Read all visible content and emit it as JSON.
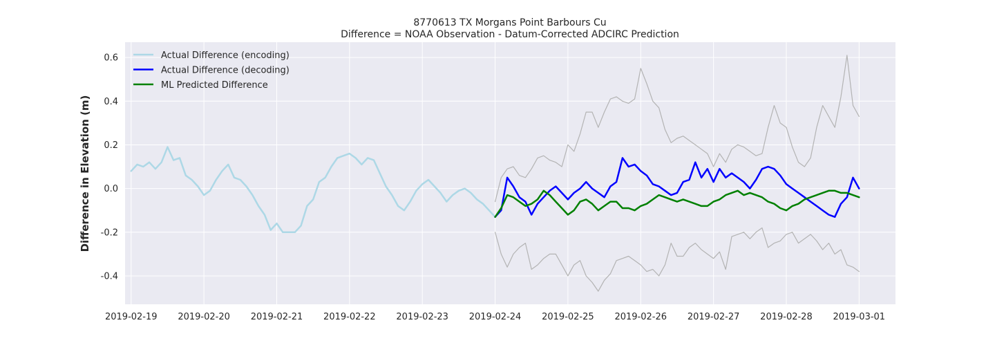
{
  "chart_data": {
    "type": "line",
    "title": "8770613 TX Morgans Point Barbours Cu",
    "subtitle": "Difference = NOAA Observation - Datum-Corrected ADCIRC Prediction",
    "xlabel": "",
    "ylabel": "Difference in Elevation (m)",
    "xlim": [
      "2019-02-18T22:00",
      "2019-03-01T12:00"
    ],
    "ylim": [
      -0.53,
      0.67
    ],
    "x_ticks": [
      "2019-02-19",
      "2019-02-20",
      "2019-02-21",
      "2019-02-22",
      "2019-02-23",
      "2019-02-24",
      "2019-02-25",
      "2019-02-26",
      "2019-02-27",
      "2019-02-28",
      "2019-03-01"
    ],
    "y_ticks": [
      -0.4,
      -0.2,
      0.0,
      0.2,
      0.4,
      0.6
    ],
    "grid": true,
    "legend_position": "top-left",
    "colors": {
      "background": "#eaeaf2",
      "grid": "#ffffff",
      "encoding": "#add8e6",
      "decoding": "#0000ff",
      "ml": "#008000",
      "band": "#b3b3b3"
    },
    "series": [
      {
        "name": "Actual Difference (encoding)",
        "x": [
          "2019-02-19T00:00",
          "2019-02-19T02:00",
          "2019-02-19T04:00",
          "2019-02-19T06:00",
          "2019-02-19T08:00",
          "2019-02-19T10:00",
          "2019-02-19T12:00",
          "2019-02-19T14:00",
          "2019-02-19T16:00",
          "2019-02-19T18:00",
          "2019-02-19T20:00",
          "2019-02-19T22:00",
          "2019-02-20T00:00",
          "2019-02-20T02:00",
          "2019-02-20T04:00",
          "2019-02-20T06:00",
          "2019-02-20T08:00",
          "2019-02-20T10:00",
          "2019-02-20T12:00",
          "2019-02-20T14:00",
          "2019-02-20T16:00",
          "2019-02-20T18:00",
          "2019-02-20T20:00",
          "2019-02-20T22:00",
          "2019-02-21T00:00",
          "2019-02-21T02:00",
          "2019-02-21T04:00",
          "2019-02-21T06:00",
          "2019-02-21T08:00",
          "2019-02-21T10:00",
          "2019-02-21T12:00",
          "2019-02-21T14:00",
          "2019-02-21T16:00",
          "2019-02-21T18:00",
          "2019-02-21T20:00",
          "2019-02-21T22:00",
          "2019-02-22T00:00",
          "2019-02-22T02:00",
          "2019-02-22T04:00",
          "2019-02-22T06:00",
          "2019-02-22T08:00",
          "2019-02-22T10:00",
          "2019-02-22T12:00",
          "2019-02-22T14:00",
          "2019-02-22T16:00",
          "2019-02-22T18:00",
          "2019-02-22T20:00",
          "2019-02-22T22:00",
          "2019-02-23T00:00",
          "2019-02-23T02:00",
          "2019-02-23T04:00",
          "2019-02-23T06:00",
          "2019-02-23T08:00",
          "2019-02-23T10:00",
          "2019-02-23T12:00",
          "2019-02-23T14:00",
          "2019-02-23T16:00",
          "2019-02-23T18:00",
          "2019-02-23T20:00",
          "2019-02-23T22:00",
          "2019-02-24T00:00"
        ],
        "values": [
          0.08,
          0.11,
          0.1,
          0.12,
          0.09,
          0.12,
          0.19,
          0.13,
          0.14,
          0.06,
          0.04,
          0.01,
          -0.03,
          -0.01,
          0.04,
          0.08,
          0.11,
          0.05,
          0.04,
          0.01,
          -0.03,
          -0.08,
          -0.12,
          -0.19,
          -0.16,
          -0.2,
          -0.2,
          -0.2,
          -0.17,
          -0.08,
          -0.05,
          0.03,
          0.05,
          0.1,
          0.14,
          0.15,
          0.16,
          0.14,
          0.11,
          0.14,
          0.13,
          0.07,
          0.01,
          -0.03,
          -0.08,
          -0.1,
          -0.06,
          -0.01,
          0.02,
          0.04,
          0.01,
          -0.02,
          -0.06,
          -0.03,
          -0.01,
          0.0,
          -0.02,
          -0.05,
          -0.07,
          -0.1,
          -0.13
        ]
      },
      {
        "name": "Actual Difference (decoding)",
        "x": [
          "2019-02-24T00:00",
          "2019-02-24T02:00",
          "2019-02-24T04:00",
          "2019-02-24T06:00",
          "2019-02-24T08:00",
          "2019-02-24T10:00",
          "2019-02-24T12:00",
          "2019-02-24T14:00",
          "2019-02-24T16:00",
          "2019-02-24T18:00",
          "2019-02-24T20:00",
          "2019-02-24T22:00",
          "2019-02-25T00:00",
          "2019-02-25T02:00",
          "2019-02-25T04:00",
          "2019-02-25T06:00",
          "2019-02-25T08:00",
          "2019-02-25T10:00",
          "2019-02-25T12:00",
          "2019-02-25T14:00",
          "2019-02-25T16:00",
          "2019-02-25T18:00",
          "2019-02-25T20:00",
          "2019-02-25T22:00",
          "2019-02-26T00:00",
          "2019-02-26T02:00",
          "2019-02-26T04:00",
          "2019-02-26T06:00",
          "2019-02-26T08:00",
          "2019-02-26T10:00",
          "2019-02-26T12:00",
          "2019-02-26T14:00",
          "2019-02-26T16:00",
          "2019-02-26T18:00",
          "2019-02-26T20:00",
          "2019-02-26T22:00",
          "2019-02-27T00:00",
          "2019-02-27T02:00",
          "2019-02-27T04:00",
          "2019-02-27T06:00",
          "2019-02-27T08:00",
          "2019-02-27T10:00",
          "2019-02-27T12:00",
          "2019-02-27T14:00",
          "2019-02-27T16:00",
          "2019-02-27T18:00",
          "2019-02-27T20:00",
          "2019-02-27T22:00",
          "2019-02-28T00:00",
          "2019-02-28T02:00",
          "2019-02-28T04:00",
          "2019-02-28T06:00",
          "2019-02-28T08:00",
          "2019-02-28T10:00",
          "2019-02-28T12:00",
          "2019-02-28T14:00",
          "2019-02-28T16:00",
          "2019-02-28T18:00",
          "2019-02-28T20:00",
          "2019-02-28T22:00",
          "2019-03-01T00:00"
        ],
        "values": [
          -0.13,
          -0.1,
          0.05,
          0.01,
          -0.04,
          -0.06,
          -0.12,
          -0.07,
          -0.04,
          -0.01,
          0.01,
          -0.02,
          -0.05,
          -0.02,
          0.0,
          0.03,
          0.0,
          -0.02,
          -0.04,
          0.01,
          0.03,
          0.14,
          0.1,
          0.11,
          0.08,
          0.06,
          0.02,
          0.01,
          -0.01,
          -0.03,
          -0.02,
          0.03,
          0.04,
          0.12,
          0.05,
          0.09,
          0.03,
          0.09,
          0.05,
          0.07,
          0.05,
          0.03,
          0.0,
          0.04,
          0.09,
          0.1,
          0.09,
          0.06,
          0.02,
          0.0,
          -0.02,
          -0.04,
          -0.06,
          -0.08,
          -0.1,
          -0.12,
          -0.13,
          -0.07,
          -0.04,
          0.05,
          0.0
        ]
      },
      {
        "name": "ML Predicted Difference",
        "x": [
          "2019-02-24T00:00",
          "2019-02-24T02:00",
          "2019-02-24T04:00",
          "2019-02-24T06:00",
          "2019-02-24T08:00",
          "2019-02-24T10:00",
          "2019-02-24T12:00",
          "2019-02-24T14:00",
          "2019-02-24T16:00",
          "2019-02-24T18:00",
          "2019-02-24T20:00",
          "2019-02-24T22:00",
          "2019-02-25T00:00",
          "2019-02-25T02:00",
          "2019-02-25T04:00",
          "2019-02-25T06:00",
          "2019-02-25T08:00",
          "2019-02-25T10:00",
          "2019-02-25T12:00",
          "2019-02-25T14:00",
          "2019-02-25T16:00",
          "2019-02-25T18:00",
          "2019-02-25T20:00",
          "2019-02-25T22:00",
          "2019-02-26T00:00",
          "2019-02-26T02:00",
          "2019-02-26T04:00",
          "2019-02-26T06:00",
          "2019-02-26T08:00",
          "2019-02-26T10:00",
          "2019-02-26T12:00",
          "2019-02-26T14:00",
          "2019-02-26T16:00",
          "2019-02-26T18:00",
          "2019-02-26T20:00",
          "2019-02-26T22:00",
          "2019-02-27T00:00",
          "2019-02-27T02:00",
          "2019-02-27T04:00",
          "2019-02-27T06:00",
          "2019-02-27T08:00",
          "2019-02-27T10:00",
          "2019-02-27T12:00",
          "2019-02-27T14:00",
          "2019-02-27T16:00",
          "2019-02-27T18:00",
          "2019-02-27T20:00",
          "2019-02-27T22:00",
          "2019-02-28T00:00",
          "2019-02-28T02:00",
          "2019-02-28T04:00",
          "2019-02-28T06:00",
          "2019-02-28T08:00",
          "2019-02-28T10:00",
          "2019-02-28T12:00",
          "2019-02-28T14:00",
          "2019-02-28T16:00",
          "2019-02-28T18:00",
          "2019-02-28T20:00",
          "2019-02-28T22:00",
          "2019-03-01T00:00"
        ],
        "values": [
          -0.13,
          -0.09,
          -0.03,
          -0.04,
          -0.06,
          -0.08,
          -0.07,
          -0.05,
          -0.01,
          -0.03,
          -0.06,
          -0.09,
          -0.12,
          -0.1,
          -0.06,
          -0.05,
          -0.07,
          -0.1,
          -0.08,
          -0.06,
          -0.06,
          -0.09,
          -0.09,
          -0.1,
          -0.08,
          -0.07,
          -0.05,
          -0.03,
          -0.04,
          -0.05,
          -0.06,
          -0.05,
          -0.06,
          -0.07,
          -0.08,
          -0.08,
          -0.06,
          -0.05,
          -0.03,
          -0.02,
          -0.01,
          -0.03,
          -0.02,
          -0.03,
          -0.04,
          -0.06,
          -0.07,
          -0.09,
          -0.1,
          -0.08,
          -0.07,
          -0.05,
          -0.04,
          -0.03,
          -0.02,
          -0.01,
          -0.01,
          -0.02,
          -0.02,
          -0.03,
          -0.04
        ]
      },
      {
        "name": "",
        "x": [
          "2019-02-24T00:00",
          "2019-02-24T02:00",
          "2019-02-24T04:00",
          "2019-02-24T06:00",
          "2019-02-24T08:00",
          "2019-02-24T10:00",
          "2019-02-24T12:00",
          "2019-02-24T14:00",
          "2019-02-24T16:00",
          "2019-02-24T18:00",
          "2019-02-24T20:00",
          "2019-02-24T22:00",
          "2019-02-25T00:00",
          "2019-02-25T02:00",
          "2019-02-25T04:00",
          "2019-02-25T06:00",
          "2019-02-25T08:00",
          "2019-02-25T10:00",
          "2019-02-25T12:00",
          "2019-02-25T14:00",
          "2019-02-25T16:00",
          "2019-02-25T18:00",
          "2019-02-25T20:00",
          "2019-02-25T22:00",
          "2019-02-26T00:00",
          "2019-02-26T02:00",
          "2019-02-26T04:00",
          "2019-02-26T06:00",
          "2019-02-26T08:00",
          "2019-02-26T10:00",
          "2019-02-26T12:00",
          "2019-02-26T14:00",
          "2019-02-26T16:00",
          "2019-02-26T18:00",
          "2019-02-26T20:00",
          "2019-02-26T22:00",
          "2019-02-27T00:00",
          "2019-02-27T02:00",
          "2019-02-27T04:00",
          "2019-02-27T06:00",
          "2019-02-27T08:00",
          "2019-02-27T10:00",
          "2019-02-27T12:00",
          "2019-02-27T14:00",
          "2019-02-27T16:00",
          "2019-02-27T18:00",
          "2019-02-27T20:00",
          "2019-02-27T22:00",
          "2019-02-28T00:00",
          "2019-02-28T02:00",
          "2019-02-28T04:00",
          "2019-02-28T06:00",
          "2019-02-28T08:00",
          "2019-02-28T10:00",
          "2019-02-28T12:00",
          "2019-02-28T14:00",
          "2019-02-28T16:00",
          "2019-02-28T18:00",
          "2019-02-28T20:00",
          "2019-02-28T22:00",
          "2019-03-01T00:00"
        ],
        "values": [
          -0.06,
          0.05,
          0.09,
          0.1,
          0.06,
          0.05,
          0.09,
          0.14,
          0.15,
          0.13,
          0.12,
          0.1,
          0.2,
          0.17,
          0.25,
          0.35,
          0.35,
          0.28,
          0.35,
          0.41,
          0.42,
          0.4,
          0.39,
          0.41,
          0.55,
          0.48,
          0.4,
          0.37,
          0.27,
          0.21,
          0.23,
          0.24,
          0.22,
          0.2,
          0.18,
          0.16,
          0.1,
          0.16,
          0.12,
          0.18,
          0.2,
          0.19,
          0.17,
          0.15,
          0.16,
          0.28,
          0.38,
          0.3,
          0.28,
          0.19,
          0.12,
          0.1,
          0.14,
          0.28,
          0.38,
          0.33,
          0.28,
          0.42,
          0.61,
          0.38,
          0.33
        ]
      },
      {
        "name": "",
        "x": [
          "2019-02-24T00:00",
          "2019-02-24T02:00",
          "2019-02-24T04:00",
          "2019-02-24T06:00",
          "2019-02-24T08:00",
          "2019-02-24T10:00",
          "2019-02-24T12:00",
          "2019-02-24T14:00",
          "2019-02-24T16:00",
          "2019-02-24T18:00",
          "2019-02-24T20:00",
          "2019-02-24T22:00",
          "2019-02-25T00:00",
          "2019-02-25T02:00",
          "2019-02-25T04:00",
          "2019-02-25T06:00",
          "2019-02-25T08:00",
          "2019-02-25T10:00",
          "2019-02-25T12:00",
          "2019-02-25T14:00",
          "2019-02-25T16:00",
          "2019-02-25T18:00",
          "2019-02-25T20:00",
          "2019-02-25T22:00",
          "2019-02-26T00:00",
          "2019-02-26T02:00",
          "2019-02-26T04:00",
          "2019-02-26T06:00",
          "2019-02-26T08:00",
          "2019-02-26T10:00",
          "2019-02-26T12:00",
          "2019-02-26T14:00",
          "2019-02-26T16:00",
          "2019-02-26T18:00",
          "2019-02-26T20:00",
          "2019-02-26T22:00",
          "2019-02-27T00:00",
          "2019-02-27T02:00",
          "2019-02-27T04:00",
          "2019-02-27T06:00",
          "2019-02-27T08:00",
          "2019-02-27T10:00",
          "2019-02-27T12:00",
          "2019-02-27T14:00",
          "2019-02-27T16:00",
          "2019-02-27T18:00",
          "2019-02-27T20:00",
          "2019-02-27T22:00",
          "2019-02-28T00:00",
          "2019-02-28T02:00",
          "2019-02-28T04:00",
          "2019-02-28T06:00",
          "2019-02-28T08:00",
          "2019-02-28T10:00",
          "2019-02-28T12:00",
          "2019-02-28T14:00",
          "2019-02-28T16:00",
          "2019-02-28T18:00",
          "2019-02-28T20:00",
          "2019-02-28T22:00",
          "2019-03-01T00:00"
        ],
        "values": [
          -0.2,
          -0.3,
          -0.36,
          -0.3,
          -0.27,
          -0.25,
          -0.37,
          -0.35,
          -0.32,
          -0.3,
          -0.3,
          -0.35,
          -0.4,
          -0.35,
          -0.33,
          -0.4,
          -0.43,
          -0.47,
          -0.42,
          -0.39,
          -0.33,
          -0.32,
          -0.31,
          -0.33,
          -0.35,
          -0.38,
          -0.37,
          -0.4,
          -0.35,
          -0.25,
          -0.31,
          -0.31,
          -0.27,
          -0.25,
          -0.28,
          -0.3,
          -0.32,
          -0.29,
          -0.37,
          -0.22,
          -0.21,
          -0.2,
          -0.23,
          -0.2,
          -0.18,
          -0.27,
          -0.25,
          -0.24,
          -0.21,
          -0.2,
          -0.25,
          -0.23,
          -0.21,
          -0.24,
          -0.28,
          -0.25,
          -0.3,
          -0.28,
          -0.35,
          -0.36,
          -0.38
        ]
      }
    ]
  }
}
